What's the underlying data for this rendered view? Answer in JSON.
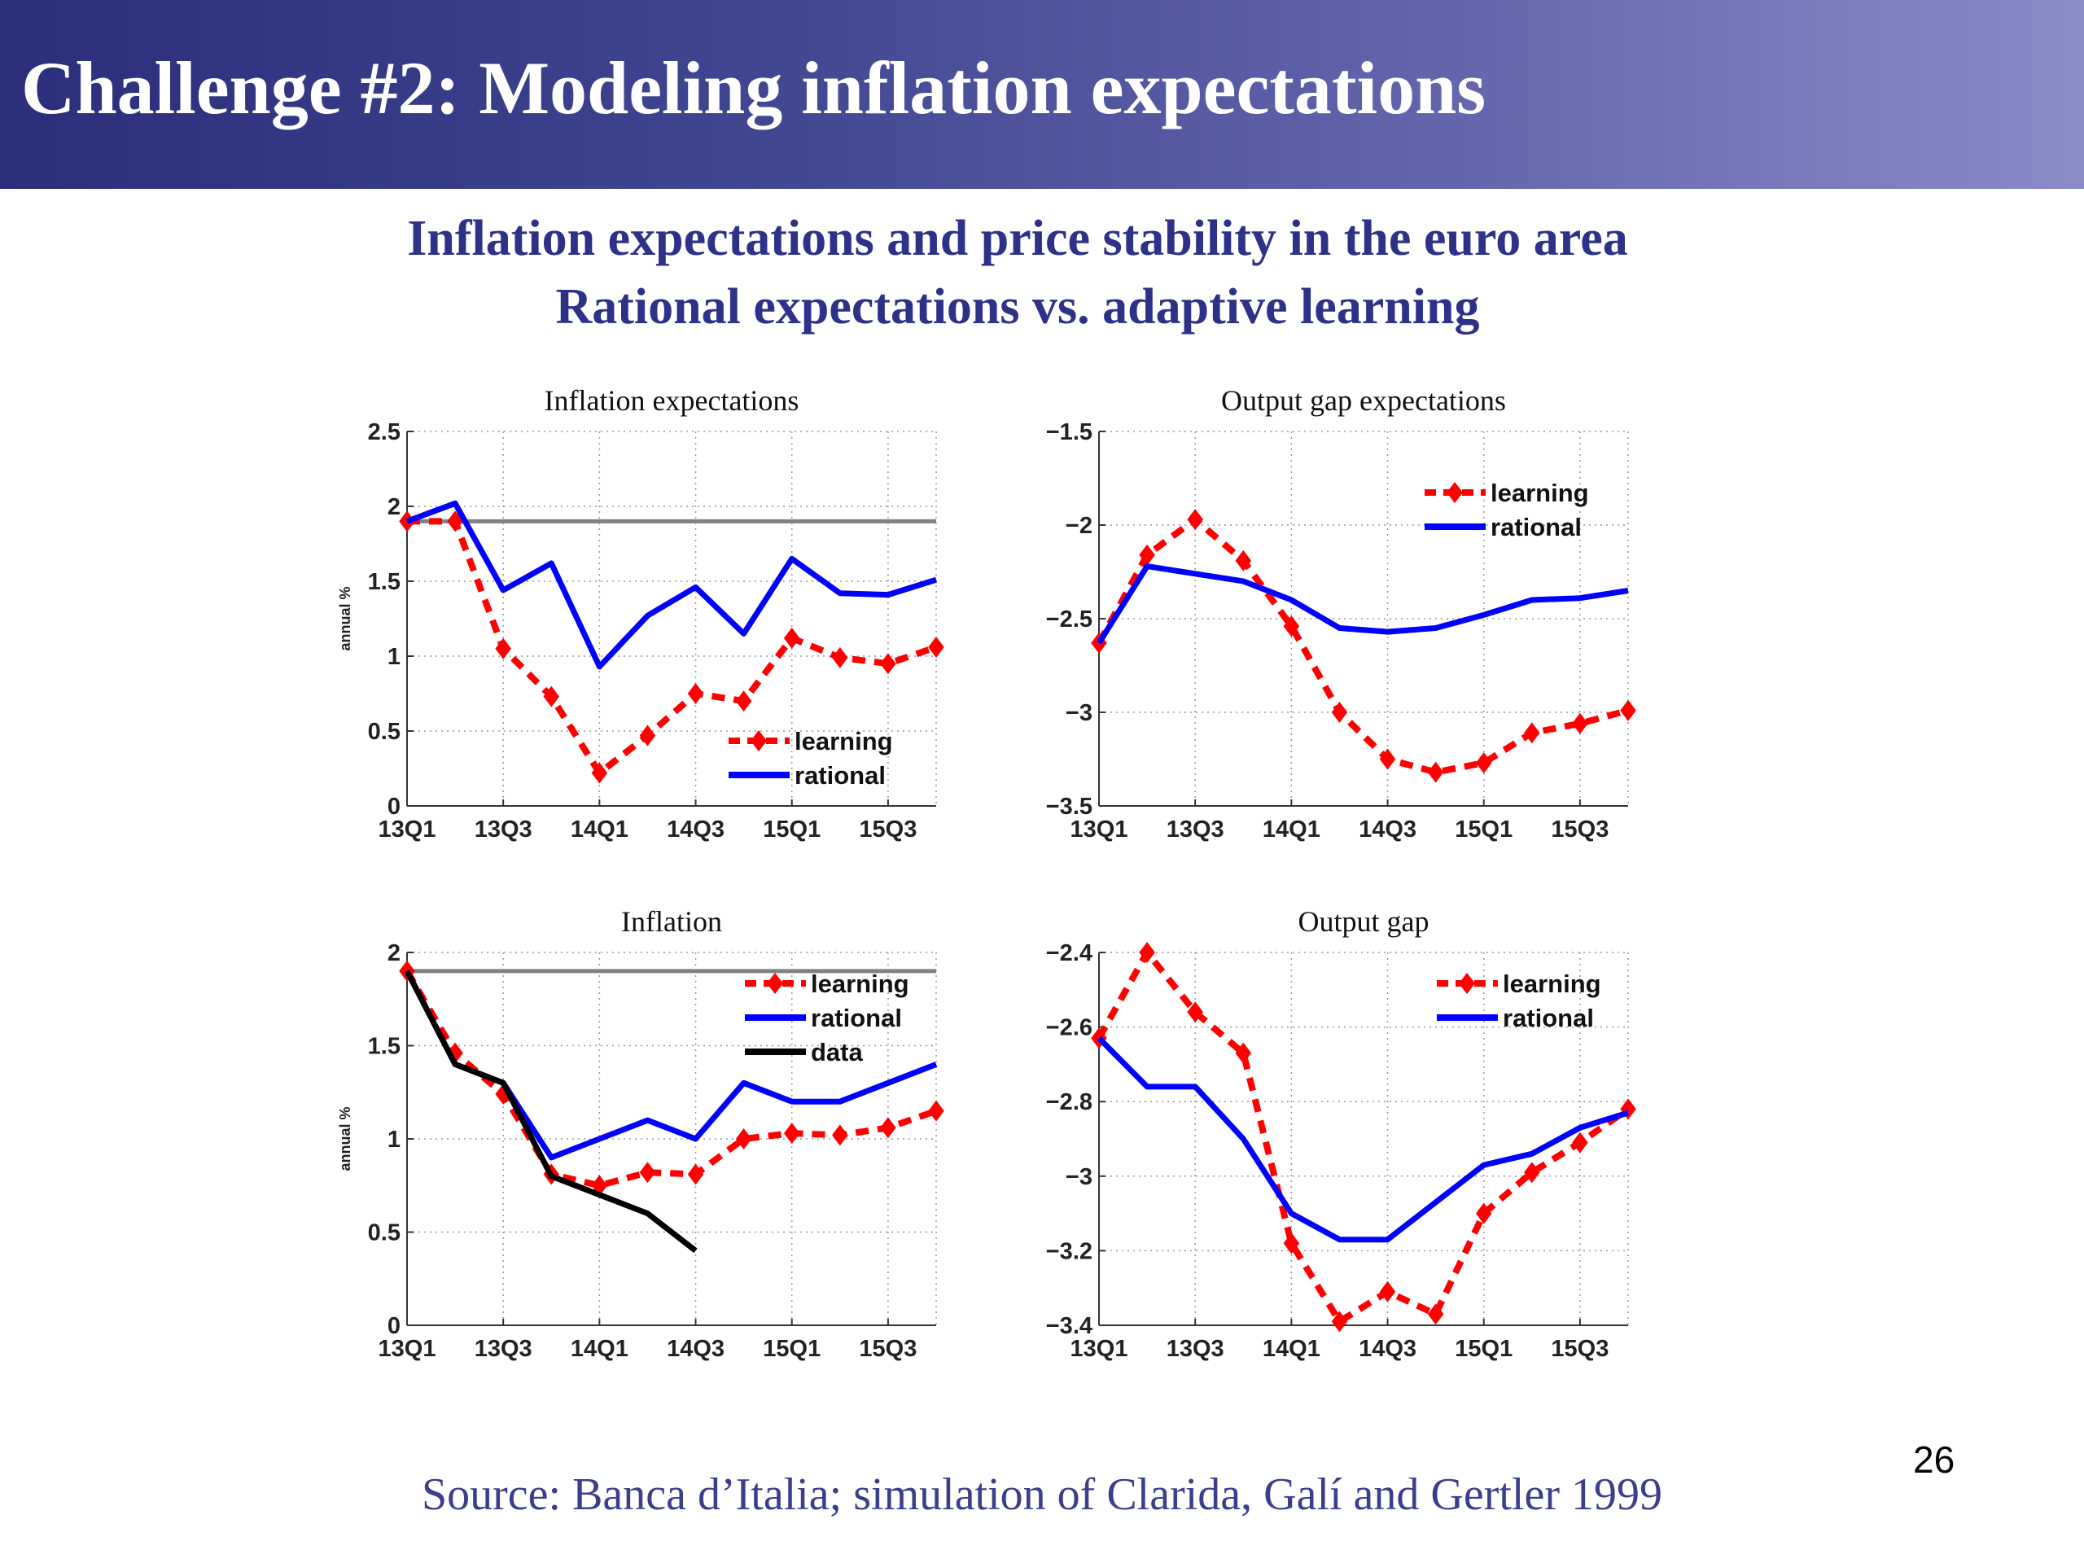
{
  "slide": {
    "title": "Challenge #2: Modeling inflation expectations",
    "subtitle_line1": "Inflation expectations and price stability in the euro area",
    "subtitle_line2": "Rational expectations vs. adaptive learning",
    "source": "Source: Banca d’Italia; simulation of  Clarida, Galí and Gertler 1999",
    "page_number": "26"
  },
  "colors": {
    "title_band_start": "#2b2e7a",
    "title_band_end": "#8a8cc8",
    "title_text": "#ffffff",
    "subtitle_text": "#2d3188",
    "learning": "#ff0000",
    "rational": "#0000ff",
    "data": "#000000",
    "reference": "#808080"
  },
  "chart_data": [
    {
      "type": "line",
      "title": "Inflation expectations",
      "ylabel": "annual %",
      "xlabel": "",
      "ylim": [
        0,
        2.5
      ],
      "yticks": [
        "0",
        "0.5",
        "1",
        "1.5",
        "2",
        "2.5"
      ],
      "ytick_values": [
        0,
        0.5,
        1,
        1.5,
        2,
        2.5
      ],
      "x_tick_labels": [
        "13Q1",
        "13Q3",
        "14Q1",
        "14Q3",
        "15Q1",
        "15Q3"
      ],
      "x_tick_positions": [
        0,
        2,
        4,
        6,
        8,
        10
      ],
      "xlim": [
        0,
        11
      ],
      "grid": true,
      "legend_position": "bottom-right",
      "reference_line": 1.9,
      "series": [
        {
          "name": "learning",
          "style": "dashed-diamond",
          "x": [
            0,
            1,
            2,
            3,
            4,
            5,
            6,
            7,
            8,
            9,
            10,
            11
          ],
          "values": [
            1.9,
            1.9,
            1.05,
            0.73,
            0.22,
            0.47,
            0.75,
            0.7,
            1.12,
            0.99,
            0.95,
            1.06
          ]
        },
        {
          "name": "rational",
          "style": "solid",
          "x": [
            0,
            1,
            2,
            3,
            4,
            5,
            6,
            7,
            8,
            9,
            10,
            11
          ],
          "values": [
            1.9,
            2.02,
            1.44,
            1.62,
            0.93,
            1.27,
            1.46,
            1.15,
            1.65,
            1.42,
            1.41,
            1.51
          ]
        }
      ]
    },
    {
      "type": "line",
      "title": "Output gap expectations",
      "ylabel": "",
      "xlabel": "",
      "ylim": [
        -3.5,
        -1.5
      ],
      "yticks": [
        "−3.5",
        "−3",
        "−2.5",
        "−2",
        "−1.5"
      ],
      "ytick_values": [
        -3.5,
        -3,
        -2.5,
        -2,
        -1.5
      ],
      "x_tick_labels": [
        "13Q1",
        "13Q3",
        "14Q1",
        "14Q3",
        "15Q1",
        "15Q3"
      ],
      "x_tick_positions": [
        0,
        2,
        4,
        6,
        8,
        10
      ],
      "xlim": [
        0,
        11
      ],
      "grid": true,
      "legend_position": "top-right",
      "series": [
        {
          "name": "learning",
          "style": "dashed-diamond",
          "x": [
            0,
            1,
            2,
            3,
            4,
            5,
            6,
            7,
            8,
            9,
            10,
            11
          ],
          "values": [
            -2.63,
            -2.16,
            -1.97,
            -2.19,
            -2.54,
            -3.0,
            -3.25,
            -3.32,
            -3.27,
            -3.11,
            -3.06,
            -2.99
          ]
        },
        {
          "name": "rational",
          "style": "solid",
          "x": [
            0,
            1,
            2,
            3,
            4,
            5,
            6,
            7,
            8,
            9,
            10,
            11
          ],
          "values": [
            -2.63,
            -2.22,
            -2.26,
            -2.3,
            -2.4,
            -2.55,
            -2.57,
            -2.55,
            -2.48,
            -2.4,
            -2.39,
            -2.35
          ]
        }
      ]
    },
    {
      "type": "line",
      "title": "Inflation",
      "ylabel": "annual %",
      "xlabel": "",
      "ylim": [
        0,
        2
      ],
      "yticks": [
        "0",
        "0.5",
        "1",
        "1.5",
        "2"
      ],
      "ytick_values": [
        0,
        0.5,
        1,
        1.5,
        2
      ],
      "x_tick_labels": [
        "13Q1",
        "13Q3",
        "14Q1",
        "14Q3",
        "15Q1",
        "15Q3"
      ],
      "x_tick_positions": [
        0,
        2,
        4,
        6,
        8,
        10
      ],
      "xlim": [
        0,
        11
      ],
      "grid": true,
      "legend_position": "top-right",
      "reference_line": 1.9,
      "series": [
        {
          "name": "learning",
          "style": "dashed-diamond",
          "x": [
            0,
            1,
            2,
            3,
            4,
            5,
            6,
            7,
            8,
            9,
            10,
            11
          ],
          "values": [
            1.9,
            1.46,
            1.24,
            0.81,
            0.75,
            0.82,
            0.81,
            1.0,
            1.03,
            1.02,
            1.06,
            1.15
          ]
        },
        {
          "name": "rational",
          "style": "solid",
          "x": [
            0,
            1,
            2,
            3,
            4,
            5,
            6,
            7,
            8,
            9,
            10,
            11
          ],
          "values": [
            1.9,
            1.4,
            1.3,
            0.9,
            1.0,
            1.1,
            1.0,
            1.3,
            1.2,
            1.2,
            1.3,
            1.4
          ]
        },
        {
          "name": "data",
          "style": "solid-black",
          "x": [
            0,
            1,
            2,
            3,
            4,
            5,
            6
          ],
          "values": [
            1.9,
            1.4,
            1.3,
            0.8,
            0.7,
            0.6,
            0.4
          ]
        }
      ]
    },
    {
      "type": "line",
      "title": "Output gap",
      "ylabel": "",
      "xlabel": "",
      "ylim": [
        -3.4,
        -2.4
      ],
      "yticks": [
        "−3.4",
        "−3.2",
        "−3",
        "−2.8",
        "−2.6",
        "−2.4"
      ],
      "ytick_values": [
        -3.4,
        -3.2,
        -3,
        -2.8,
        -2.6,
        -2.4
      ],
      "x_tick_labels": [
        "13Q1",
        "13Q3",
        "14Q1",
        "14Q3",
        "15Q1",
        "15Q3"
      ],
      "x_tick_positions": [
        0,
        2,
        4,
        6,
        8,
        10
      ],
      "xlim": [
        0,
        11
      ],
      "grid": true,
      "legend_position": "top-right",
      "series": [
        {
          "name": "learning",
          "style": "dashed-diamond",
          "x": [
            0,
            1,
            2,
            3,
            4,
            5,
            6,
            7,
            8,
            9,
            10,
            11
          ],
          "values": [
            -2.63,
            -2.4,
            -2.56,
            -2.67,
            -3.18,
            -3.39,
            -3.31,
            -3.37,
            -3.1,
            -2.99,
            -2.91,
            -2.82
          ]
        },
        {
          "name": "rational",
          "style": "solid",
          "x": [
            0,
            1,
            2,
            3,
            4,
            5,
            6,
            7,
            8,
            9,
            10,
            11
          ],
          "values": [
            -2.63,
            -2.76,
            -2.76,
            -2.9,
            -3.1,
            -3.17,
            -3.17,
            -3.07,
            -2.97,
            -2.94,
            -2.87,
            -2.83
          ]
        }
      ]
    }
  ]
}
